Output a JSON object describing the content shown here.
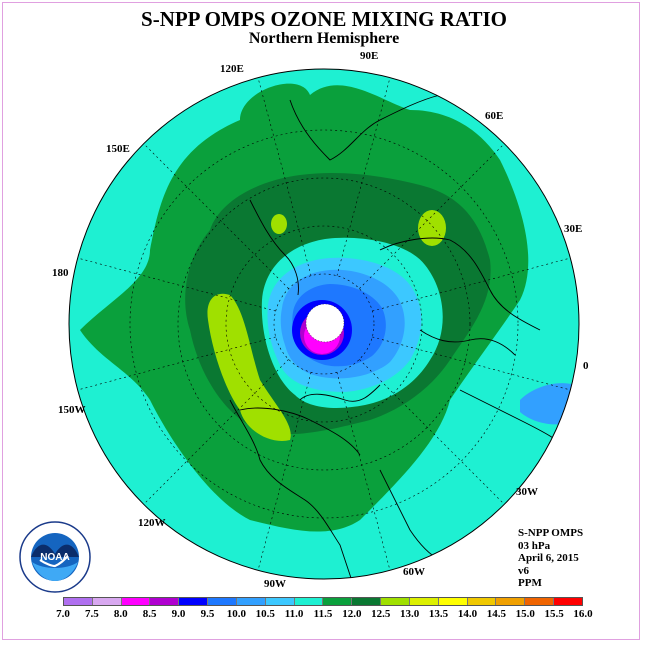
{
  "title": "S-NPP OMPS OZONE MIXING RATIO",
  "subtitle": "Northern Hemisphere",
  "longitude_labels": [
    "90E",
    "60E",
    "30E",
    "0",
    "30W",
    "60W",
    "90W",
    "120W",
    "150W",
    "180",
    "150E",
    "120E"
  ],
  "info": {
    "line1": "S-NPP OMPS",
    "line2": "03 hPa",
    "line3": "April 6, 2015",
    "line4": "v6",
    "line5": "PPM"
  },
  "logo": {
    "text": "NOAA",
    "ring_text": "NATIONAL OCEANIC AND ATMOSPHERIC ADMINISTRATION · U.S. DEPARTMENT OF COMMERCE"
  },
  "colorbar": {
    "labels": [
      "7.0",
      "7.5",
      "8.0",
      "8.5",
      "9.0",
      "9.5",
      "10.0",
      "10.5",
      "11.0",
      "11.5",
      "12.0",
      "12.5",
      "13.0",
      "13.5",
      "14.0",
      "14.5",
      "15.0",
      "15.5",
      "16.0"
    ],
    "colors": [
      "#b070f0",
      "#d8a8f0",
      "#ff00ff",
      "#b000d0",
      "#0000ff",
      "#1e78ff",
      "#32a0ff",
      "#3cc8ff",
      "#1ef0d2",
      "#0aa03c",
      "#0a7832",
      "#a0e000",
      "#dcf000",
      "#ffff00",
      "#f0c800",
      "#f0a000",
      "#f06400",
      "#ff0000",
      "#8b5a3c"
    ]
  },
  "map_colors": {
    "c11": "#1ef0d2",
    "c115": "#0aa03c",
    "c12": "#0a7832",
    "c125": "#a0e000",
    "c105": "#3cc8ff",
    "c10": "#32a0ff",
    "c95": "#1e78ff",
    "c9": "#0000ff",
    "c85": "#b000d0",
    "c8": "#ff00ff"
  }
}
